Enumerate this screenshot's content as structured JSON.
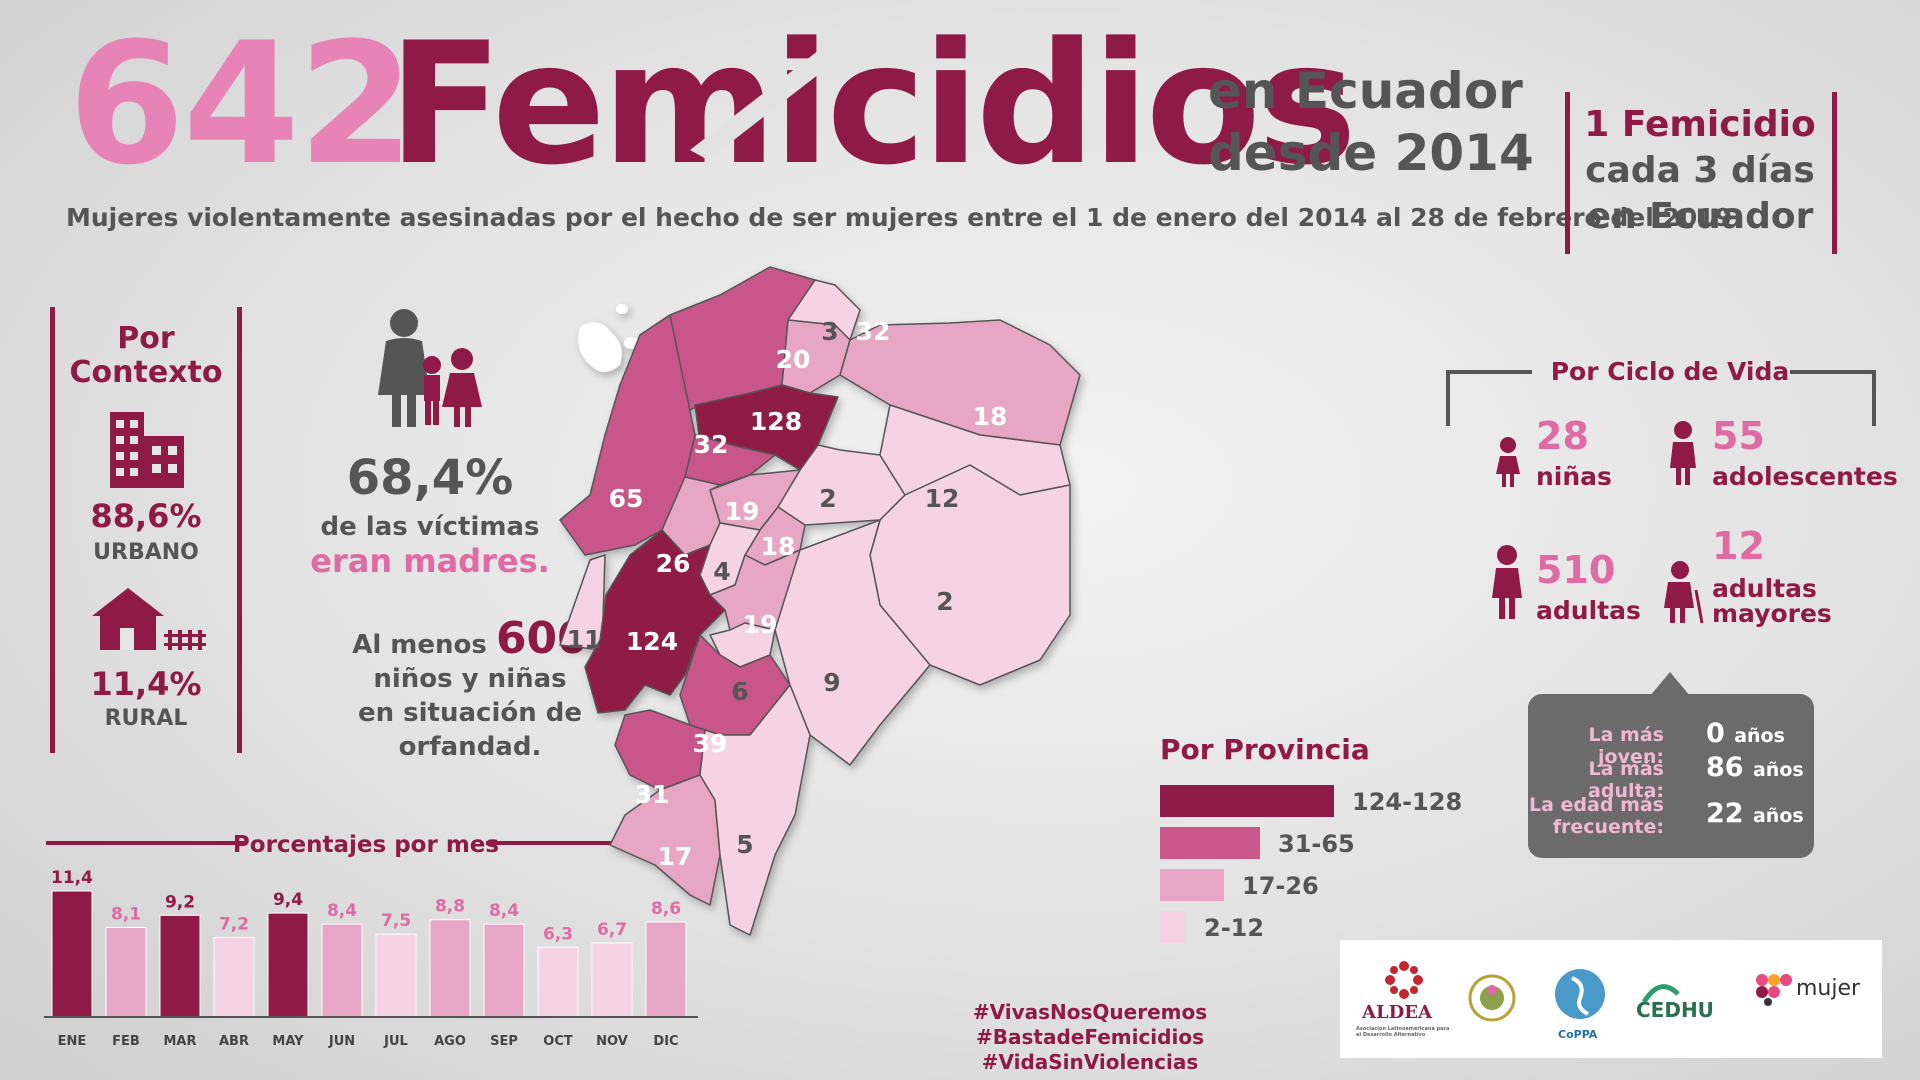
{
  "header": {
    "total": "642",
    "word": "Femicidios",
    "sub_line1": "en Ecuador",
    "sub_line2": "desde 2014",
    "subtitle": "Mujeres violentamente asesinadas por el hecho de ser mujeres entre el 1 de enero del 2014 al 28 de febrero del 2019",
    "rate_line1": "1 Femicidio",
    "rate_line2": "cada 3 días",
    "rate_line3": "en Ecuador"
  },
  "context": {
    "title_line1": "Por",
    "title_line2": "Contexto",
    "urban_pct": "88,6%",
    "urban_label": "URBANO",
    "rural_pct": "11,4%",
    "rural_label": "RURAL"
  },
  "mothers": {
    "pct": "68,4%",
    "line1": "de las víctimas",
    "line2": "eran madres.",
    "orphan_pre": "Al menos",
    "orphan_num": "600",
    "orphan_line2": "niños y niñas",
    "orphan_line3": "en situación de orfandad."
  },
  "chart_data": [
    {
      "type": "bar",
      "title": "Porcentajes por mes",
      "categories": [
        "ENE",
        "FEB",
        "MAR",
        "ABR",
        "MAY",
        "JUN",
        "JUL",
        "AGO",
        "SEP",
        "OCT",
        "NOV",
        "DIC"
      ],
      "values": [
        11.4,
        8.1,
        9.2,
        7.2,
        9.4,
        8.4,
        7.5,
        8.8,
        8.4,
        6.3,
        6.7,
        8.6
      ],
      "value_labels": [
        "11,4",
        "8,1",
        "9,2",
        "7,2",
        "9,4",
        "8,4",
        "7,5",
        "8,8",
        "8,4",
        "6,3",
        "6,7",
        "8,6"
      ],
      "colors": [
        "#8e1a45",
        "#e8a6c6",
        "#8e1a45",
        "#f6d3e4",
        "#8e1a45",
        "#e8a6c6",
        "#f6d3e4",
        "#e8a6c6",
        "#e8a6c6",
        "#f6d3e4",
        "#f6d3e4",
        "#e8a6c6"
      ],
      "ylim": [
        0,
        12
      ],
      "grid": false
    },
    {
      "type": "map",
      "title": "Por Provincia",
      "values": [
        32,
        3,
        20,
        128,
        18,
        32,
        65,
        2,
        12,
        19,
        26,
        18,
        4,
        11,
        124,
        19,
        2,
        6,
        9,
        39,
        31,
        17,
        5
      ],
      "legend": [
        {
          "label": "124-128",
          "color": "#8e1a45"
        },
        {
          "label": "31-65",
          "color": "#c9578a"
        },
        {
          "label": "17-26",
          "color": "#e8a6c6"
        },
        {
          "label": "2-12",
          "color": "#f6d3e4"
        }
      ]
    }
  ],
  "life_cycle": {
    "title": "Por Ciclo de Vida",
    "items": [
      {
        "num": "28",
        "label": "niñas"
      },
      {
        "num": "55",
        "label": "adolescentes"
      },
      {
        "num": "510",
        "label": "adultas"
      },
      {
        "num": "12",
        "label_l1": "adultas",
        "label_l2": "mayores"
      }
    ],
    "youngest_label": "La más joven:",
    "youngest_val": "0",
    "oldest_label": "La más adulta:",
    "oldest_val": "86",
    "frequent_label_l1": "La edad más",
    "frequent_label_l2": "frecuente:",
    "frequent_val": "22",
    "unit": "años"
  },
  "hashtags": {
    "line1": "#VivasNosQueremos #BastadeFemicidios",
    "line2": "#VidaSinViolencias"
  },
  "logos": {
    "aldea": "ALDEA",
    "aldea_sub": "Asociación Latinoamericana para el Desarrollo Alternativo",
    "coppa": "CoPPA",
    "cedhu": "CEDHU",
    "mujer": "mujer"
  }
}
